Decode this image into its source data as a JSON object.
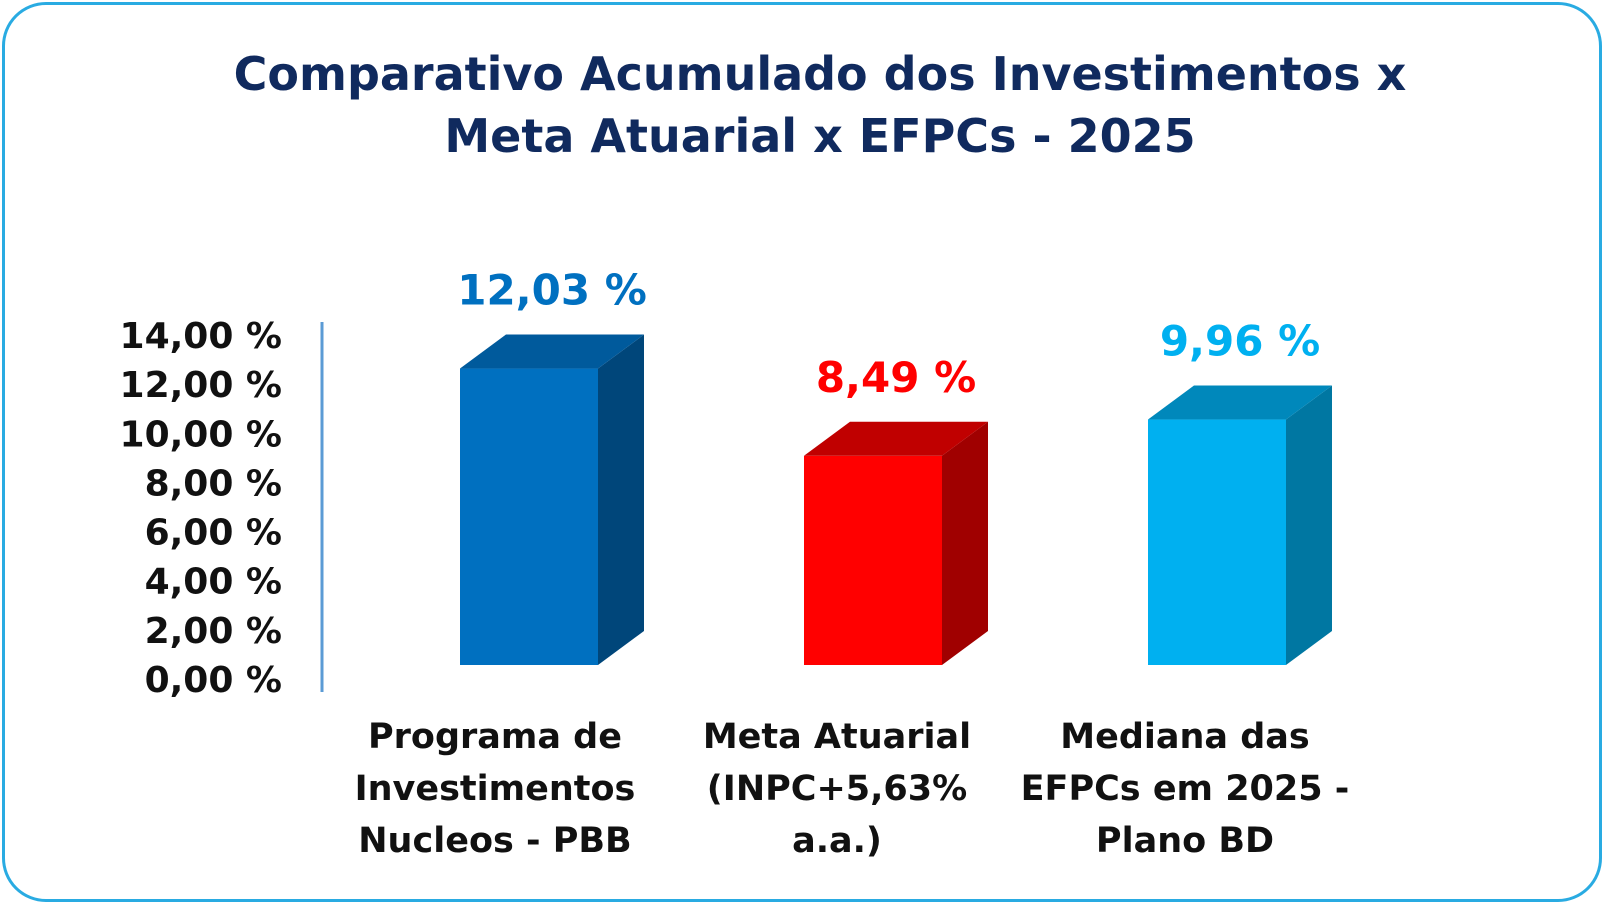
{
  "chart_data": {
    "type": "bar",
    "title_lines": [
      "Comparativo Acumulado dos Investimentos x",
      "Meta Atuarial x  EFPCs - 2025"
    ],
    "categories": [
      [
        "Programa de",
        "Investimentos",
        "Nucleos  - PBB"
      ],
      [
        "Meta Atuarial",
        "(INPC+5,63%",
        "a.a.)"
      ],
      [
        "Mediana das",
        "EFPCs em 2025 -",
        "Plano BD"
      ]
    ],
    "values": [
      12.03,
      8.49,
      9.96
    ],
    "value_labels": [
      "12,03 %",
      "8,49 %",
      "9,96 %"
    ],
    "y_ticks": [
      "0,00 %",
      "2,00 %",
      "4,00 %",
      "6,00 %",
      "8,00 %",
      "10,00 %",
      "12,00 %",
      "14,00 %"
    ],
    "ylim": [
      0,
      14
    ],
    "colors": {
      "bars": [
        "#0070c0",
        "#ff0000",
        "#00b0f0"
      ],
      "bar_sides": [
        "#00467a",
        "#a00000",
        "#0077a2"
      ],
      "bar_tops": [
        "#005a9c",
        "#c00000",
        "#0088bb"
      ],
      "labels": [
        "#0070c0",
        "#ff0000",
        "#00b0f0"
      ],
      "title": "#102a5e",
      "frame": "#29abe2",
      "axis": "#5b9bd5"
    }
  }
}
